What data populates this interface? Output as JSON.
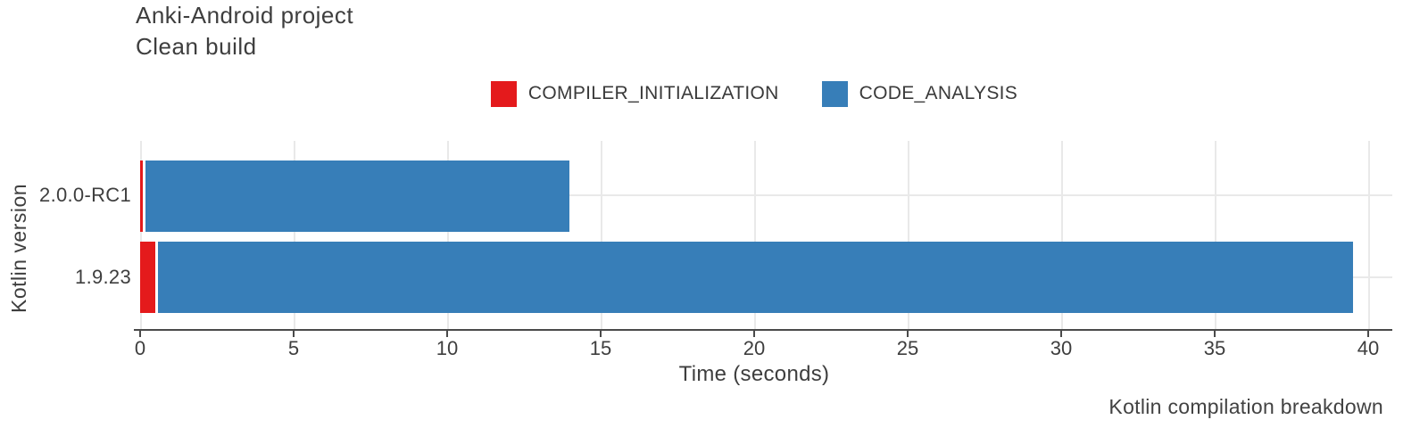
{
  "header": {
    "title": "Anki-Android project",
    "subtitle": "Clean build"
  },
  "chart_data": {
    "type": "bar",
    "orientation": "horizontal",
    "stacked": true,
    "title": "Anki-Android project",
    "subtitle": "Clean build",
    "categories": [
      "2.0.0-RC1",
      "1.9.23"
    ],
    "series": [
      {
        "name": "COMPILER_INITIALIZATION",
        "color": "#e41a1c",
        "values": [
          0.1,
          0.5
        ]
      },
      {
        "name": "CODE_ANALYSIS",
        "color": "#377eb8",
        "values": [
          13.9,
          39.0
        ]
      }
    ],
    "totals_seconds": [
      14.0,
      39.5
    ],
    "xlabel": "Time (seconds)",
    "ylabel": "Kotlin version",
    "xlim": [
      0,
      40
    ],
    "xticks": [
      0,
      5,
      10,
      15,
      20,
      25,
      30,
      35,
      40
    ],
    "grid": true,
    "legend_position": "top",
    "caption": "Kotlin compilation breakdown"
  },
  "colors": {
    "series_compiler_initialization": "#e41a1c",
    "series_code_analysis": "#377eb8",
    "gridline": "#e9e9e9",
    "axis": "#4a4a4a",
    "text": "#3e3e3e",
    "background": "#ffffff"
  }
}
